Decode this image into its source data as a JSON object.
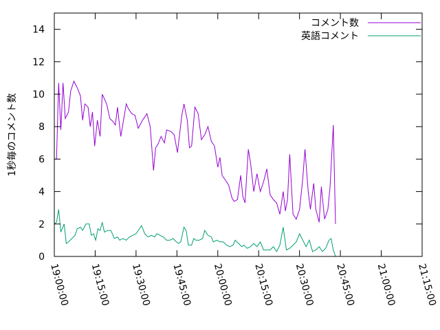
{
  "chart_data": {
    "type": "line",
    "title": "",
    "xlabel": "",
    "ylabel": "1秒毎のコメント数",
    "ylim": [
      0,
      15
    ],
    "xlim": [
      "19:00:00",
      "21:15:00"
    ],
    "x_ticks": [
      "19:00:00",
      "19:15:00",
      "19:30:00",
      "19:45:00",
      "20:00:00",
      "20:15:00",
      "20:30:00",
      "20:45:00",
      "21:00:00",
      "21:15:00"
    ],
    "y_ticks": [
      0,
      2,
      4,
      6,
      8,
      10,
      12,
      14
    ],
    "grid": false,
    "legend_position": "top-right",
    "series": [
      {
        "name": "コメント数",
        "color": "#9400d3",
        "points": [
          [
            "19:00:00",
            6.0
          ],
          [
            "19:00:48",
            6.0
          ],
          [
            "19:01:36",
            10.7
          ],
          [
            "19:02:24",
            7.8
          ],
          [
            "19:03:12",
            10.7
          ],
          [
            "19:04:00",
            8.5
          ],
          [
            "19:05:12",
            8.9
          ],
          [
            "19:06:00",
            10.2
          ],
          [
            "19:07:12",
            10.8
          ],
          [
            "19:08:24",
            10.4
          ],
          [
            "19:09:36",
            9.9
          ],
          [
            "19:10:24",
            8.4
          ],
          [
            "19:11:12",
            9.4
          ],
          [
            "19:12:24",
            9.2
          ],
          [
            "19:13:12",
            8.0
          ],
          [
            "19:14:00",
            8.9
          ],
          [
            "19:14:48",
            6.8
          ],
          [
            "19:15:48",
            8.4
          ],
          [
            "19:16:48",
            7.4
          ],
          [
            "19:17:36",
            10.0
          ],
          [
            "19:19:12",
            9.4
          ],
          [
            "19:20:24",
            8.5
          ],
          [
            "19:21:36",
            8.3
          ],
          [
            "19:22:24",
            8.1
          ],
          [
            "19:23:12",
            9.2
          ],
          [
            "19:24:24",
            7.4
          ],
          [
            "19:25:36",
            8.6
          ],
          [
            "19:26:24",
            9.4
          ],
          [
            "19:27:12",
            9.1
          ],
          [
            "19:28:24",
            8.8
          ],
          [
            "19:29:36",
            8.7
          ],
          [
            "19:30:48",
            7.9
          ],
          [
            "19:32:24",
            8.4
          ],
          [
            "19:34:00",
            8.8
          ],
          [
            "19:35:12",
            8.0
          ],
          [
            "19:36:24",
            5.3
          ],
          [
            "19:37:12",
            6.7
          ],
          [
            "19:38:00",
            6.9
          ],
          [
            "19:39:12",
            7.4
          ],
          [
            "19:40:24",
            7.0
          ],
          [
            "19:41:12",
            7.8
          ],
          [
            "19:42:48",
            7.7
          ],
          [
            "19:44:00",
            7.5
          ],
          [
            "19:45:12",
            6.4
          ],
          [
            "19:46:48",
            8.7
          ],
          [
            "19:47:36",
            9.4
          ],
          [
            "19:48:48",
            8.4
          ],
          [
            "19:49:36",
            6.7
          ],
          [
            "19:50:24",
            6.8
          ],
          [
            "19:51:36",
            9.2
          ],
          [
            "19:52:48",
            8.8
          ],
          [
            "19:54:00",
            7.2
          ],
          [
            "19:55:12",
            7.5
          ],
          [
            "19:56:24",
            8.0
          ],
          [
            "19:57:36",
            7.1
          ],
          [
            "19:58:48",
            6.8
          ],
          [
            "20:00:00",
            5.5
          ],
          [
            "20:00:48",
            6.1
          ],
          [
            "20:01:36",
            5.0
          ],
          [
            "20:02:48",
            4.7
          ],
          [
            "20:04:00",
            4.4
          ],
          [
            "20:05:12",
            3.6
          ],
          [
            "20:06:00",
            3.4
          ],
          [
            "20:07:12",
            3.5
          ],
          [
            "20:08:24",
            5.0
          ],
          [
            "20:09:12",
            3.7
          ],
          [
            "20:10:00",
            3.3
          ],
          [
            "20:11:12",
            6.6
          ],
          [
            "20:12:00",
            5.8
          ],
          [
            "20:13:12",
            4.0
          ],
          [
            "20:14:24",
            5.1
          ],
          [
            "20:15:36",
            4.0
          ],
          [
            "20:16:48",
            4.6
          ],
          [
            "20:18:00",
            5.4
          ],
          [
            "20:19:12",
            3.8
          ],
          [
            "20:20:24",
            3.5
          ],
          [
            "20:21:36",
            3.3
          ],
          [
            "20:22:48",
            2.6
          ],
          [
            "20:24:00",
            4.0
          ],
          [
            "20:24:48",
            2.8
          ],
          [
            "20:25:36",
            3.5
          ],
          [
            "20:26:24",
            6.3
          ],
          [
            "20:27:36",
            2.6
          ],
          [
            "20:28:48",
            2.3
          ],
          [
            "20:30:00",
            2.9
          ],
          [
            "20:31:12",
            4.8
          ],
          [
            "20:32:00",
            6.6
          ],
          [
            "20:33:12",
            4.0
          ],
          [
            "20:34:00",
            2.9
          ],
          [
            "20:35:12",
            4.5
          ],
          [
            "20:36:00",
            2.9
          ],
          [
            "20:37:12",
            2.1
          ],
          [
            "20:38:00",
            4.3
          ],
          [
            "20:39:12",
            2.3
          ],
          [
            "20:40:24",
            2.9
          ],
          [
            "20:41:12",
            4.3
          ],
          [
            "20:42:24",
            8.1
          ],
          [
            "20:43:12",
            2.0
          ]
        ]
      },
      {
        "name": "英語コメント",
        "color": "#009e73",
        "points": [
          [
            "19:00:00",
            2.0
          ],
          [
            "19:00:48",
            2.1
          ],
          [
            "19:01:36",
            2.9
          ],
          [
            "19:02:24",
            1.5
          ],
          [
            "19:03:36",
            2.0
          ],
          [
            "19:04:24",
            0.8
          ],
          [
            "19:05:12",
            0.9
          ],
          [
            "19:06:24",
            1.1
          ],
          [
            "19:07:36",
            1.3
          ],
          [
            "19:08:24",
            1.7
          ],
          [
            "19:09:36",
            1.8
          ],
          [
            "19:10:24",
            1.6
          ],
          [
            "19:11:36",
            2.0
          ],
          [
            "19:12:48",
            2.0
          ],
          [
            "19:13:36",
            1.3
          ],
          [
            "19:14:24",
            1.4
          ],
          [
            "19:15:12",
            1.0
          ],
          [
            "19:16:00",
            1.7
          ],
          [
            "19:16:48",
            1.6
          ],
          [
            "19:17:36",
            2.1
          ],
          [
            "19:18:24",
            1.5
          ],
          [
            "19:19:36",
            1.6
          ],
          [
            "19:20:48",
            1.6
          ],
          [
            "19:22:00",
            1.1
          ],
          [
            "19:23:12",
            1.2
          ],
          [
            "19:24:00",
            1.0
          ],
          [
            "19:25:12",
            1.1
          ],
          [
            "19:26:24",
            1.0
          ],
          [
            "19:27:36",
            1.2
          ],
          [
            "19:28:48",
            1.3
          ],
          [
            "19:30:00",
            1.4
          ],
          [
            "19:31:12",
            1.7
          ],
          [
            "19:32:00",
            1.9
          ],
          [
            "19:33:12",
            1.4
          ],
          [
            "19:34:24",
            1.2
          ],
          [
            "19:35:36",
            1.3
          ],
          [
            "19:36:48",
            1.2
          ],
          [
            "19:37:36",
            1.4
          ],
          [
            "19:38:48",
            1.3
          ],
          [
            "19:40:00",
            1.2
          ],
          [
            "19:41:12",
            1.0
          ],
          [
            "19:42:24",
            1.0
          ],
          [
            "19:43:36",
            1.1
          ],
          [
            "19:44:48",
            0.9
          ],
          [
            "19:45:36",
            0.8
          ],
          [
            "19:46:24",
            0.9
          ],
          [
            "19:47:36",
            1.8
          ],
          [
            "19:48:24",
            1.6
          ],
          [
            "19:49:12",
            0.7
          ],
          [
            "19:50:24",
            0.7
          ],
          [
            "19:51:12",
            1.1
          ],
          [
            "19:52:00",
            1.0
          ],
          [
            "19:53:12",
            1.0
          ],
          [
            "19:54:24",
            1.1
          ],
          [
            "19:55:12",
            1.6
          ],
          [
            "19:56:24",
            1.3
          ],
          [
            "19:57:36",
            1.2
          ],
          [
            "19:58:24",
            0.9
          ],
          [
            "19:59:36",
            1.0
          ],
          [
            "20:00:48",
            0.9
          ],
          [
            "20:02:00",
            0.9
          ],
          [
            "20:03:12",
            0.7
          ],
          [
            "20:04:24",
            0.6
          ],
          [
            "20:05:36",
            0.7
          ],
          [
            "20:06:24",
            1.0
          ],
          [
            "20:07:36",
            0.8
          ],
          [
            "20:08:48",
            0.6
          ],
          [
            "20:09:36",
            0.7
          ],
          [
            "20:10:48",
            0.5
          ],
          [
            "20:12:00",
            0.6
          ],
          [
            "20:13:12",
            0.8
          ],
          [
            "20:14:24",
            0.6
          ],
          [
            "20:15:36",
            0.9
          ],
          [
            "20:16:48",
            0.4
          ],
          [
            "20:18:00",
            0.4
          ],
          [
            "20:19:12",
            0.4
          ],
          [
            "20:20:24",
            0.6
          ],
          [
            "20:21:36",
            0.3
          ],
          [
            "20:22:48",
            0.7
          ],
          [
            "20:24:00",
            1.8
          ],
          [
            "20:25:12",
            0.4
          ],
          [
            "20:26:24",
            0.5
          ],
          [
            "20:27:36",
            0.7
          ],
          [
            "20:28:48",
            0.9
          ],
          [
            "20:30:00",
            1.4
          ],
          [
            "20:31:12",
            1.0
          ],
          [
            "20:32:24",
            0.6
          ],
          [
            "20:33:36",
            1.0
          ],
          [
            "20:34:48",
            0.3
          ],
          [
            "20:36:00",
            0.4
          ],
          [
            "20:37:12",
            0.6
          ],
          [
            "20:38:24",
            0.3
          ],
          [
            "20:39:36",
            0.5
          ],
          [
            "20:40:48",
            1.0
          ],
          [
            "20:41:36",
            1.1
          ],
          [
            "20:42:24",
            0.4
          ],
          [
            "20:43:12",
            0.0
          ]
        ]
      }
    ]
  }
}
